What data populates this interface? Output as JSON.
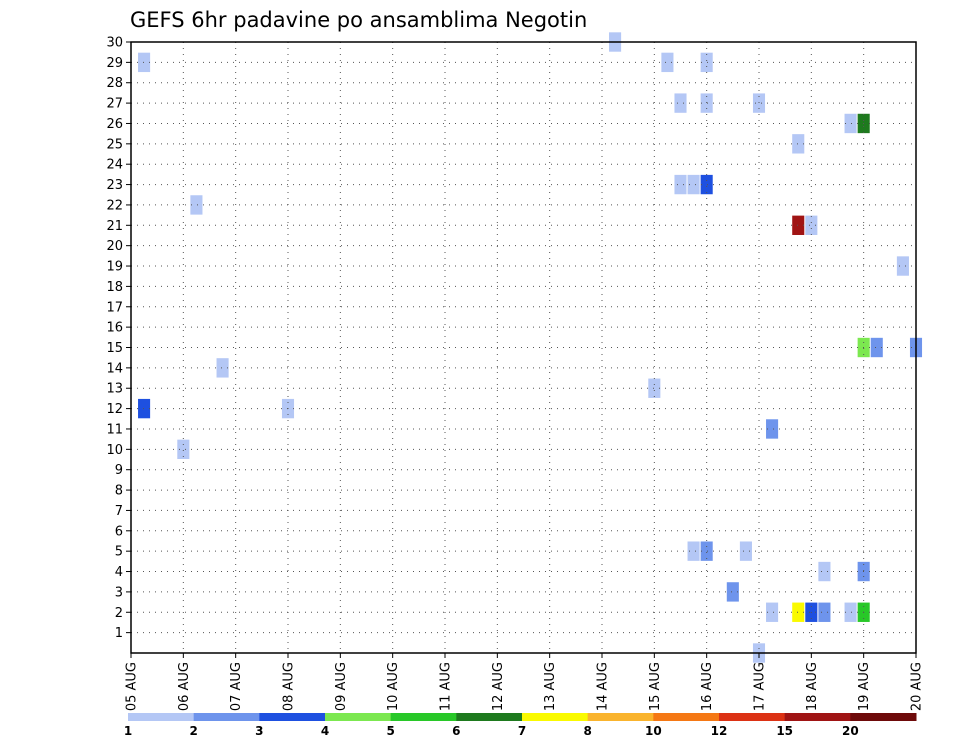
{
  "chart_data": {
    "type": "heatmap",
    "title": "GEFS 6hr padavine po ansamblima Negotin",
    "x_ticks": [
      "05 AUG",
      "06 AUG",
      "07 AUG",
      "08 AUG",
      "09 AUG",
      "10 AUG",
      "11 AUG",
      "12 AUG",
      "13 AUG",
      "14 AUG",
      "15 AUG",
      "16 AUG",
      "17 AUG",
      "18 AUG",
      "19 AUG",
      "20 AUG"
    ],
    "xlim": [
      "05 AUG",
      "20 AUG"
    ],
    "y_ticks": [
      "1",
      "2",
      "3",
      "4",
      "5",
      "6",
      "7",
      "8",
      "9",
      "10",
      "11",
      "12",
      "13",
      "14",
      "15",
      "16",
      "17",
      "18",
      "19",
      "20",
      "21",
      "22",
      "23",
      "24",
      "25",
      "26",
      "27",
      "28",
      "29",
      "30"
    ],
    "ylim": [
      0,
      30
    ],
    "grid": true,
    "colorbar": {
      "labels": [
        "1",
        "2",
        "3",
        "4",
        "5",
        "6",
        "7",
        "8",
        "10",
        "12",
        "15",
        "20"
      ],
      "colors": [
        "#b4c7f5",
        "#6e94ec",
        "#1e50e0",
        "#7ce850",
        "#28c828",
        "#1e7a1e",
        "#fafa00",
        "#fab42d",
        "#f57814",
        "#dc3214",
        "#a01414",
        "#6e0a0a"
      ]
    },
    "cells": [
      {
        "day": 0.25,
        "member": 29,
        "color": "#b4c7f5"
      },
      {
        "day": 0.25,
        "member": 12,
        "color": "#1e50e0"
      },
      {
        "day": 1.0,
        "member": 10,
        "color": "#b4c7f5"
      },
      {
        "day": 1.25,
        "member": 22,
        "color": "#b4c7f5"
      },
      {
        "day": 1.75,
        "member": 14,
        "color": "#b4c7f5"
      },
      {
        "day": 3.0,
        "member": 12,
        "color": "#b4c7f5"
      },
      {
        "day": 9.25,
        "member": 30,
        "color": "#b4c7f5"
      },
      {
        "day": 10.0,
        "member": 13,
        "color": "#b4c7f5"
      },
      {
        "day": 10.25,
        "member": 29,
        "color": "#b4c7f5"
      },
      {
        "day": 10.5,
        "member": 27,
        "color": "#b4c7f5"
      },
      {
        "day": 10.5,
        "member": 23,
        "color": "#b4c7f5"
      },
      {
        "day": 10.75,
        "member": 23,
        "color": "#b4c7f5"
      },
      {
        "day": 10.75,
        "member": 5,
        "color": "#b4c7f5"
      },
      {
        "day": 11.0,
        "member": 29,
        "color": "#b4c7f5"
      },
      {
        "day": 11.0,
        "member": 27,
        "color": "#b4c7f5"
      },
      {
        "day": 11.0,
        "member": 23,
        "color": "#1e50e0"
      },
      {
        "day": 11.0,
        "member": 5,
        "color": "#6e94ec"
      },
      {
        "day": 11.5,
        "member": 3,
        "color": "#6e94ec"
      },
      {
        "day": 11.75,
        "member": 5,
        "color": "#b4c7f5"
      },
      {
        "day": 12.0,
        "member": 27,
        "color": "#b4c7f5"
      },
      {
        "day": 12.0,
        "member": 0,
        "color": "#b4c7f5"
      },
      {
        "day": 12.25,
        "member": 11,
        "color": "#6e94ec"
      },
      {
        "day": 12.25,
        "member": 2,
        "color": "#b4c7f5"
      },
      {
        "day": 12.75,
        "member": 25,
        "color": "#b4c7f5"
      },
      {
        "day": 12.75,
        "member": 21,
        "color": "#a01414"
      },
      {
        "day": 12.75,
        "member": 2,
        "color": "#fafa00"
      },
      {
        "day": 13.0,
        "member": 21,
        "color": "#b4c7f5"
      },
      {
        "day": 13.0,
        "member": 2,
        "color": "#1e50e0"
      },
      {
        "day": 13.25,
        "member": 4,
        "color": "#b4c7f5"
      },
      {
        "day": 13.25,
        "member": 2,
        "color": "#6e94ec"
      },
      {
        "day": 13.75,
        "member": 26,
        "color": "#b4c7f5"
      },
      {
        "day": 13.75,
        "member": 2,
        "color": "#b4c7f5"
      },
      {
        "day": 14.0,
        "member": 26,
        "color": "#1e7a1e"
      },
      {
        "day": 14.0,
        "member": 15,
        "color": "#7ce850"
      },
      {
        "day": 14.0,
        "member": 4,
        "color": "#6e94ec"
      },
      {
        "day": 14.0,
        "member": 2,
        "color": "#28c828"
      },
      {
        "day": 14.25,
        "member": 15,
        "color": "#6e94ec"
      },
      {
        "day": 14.75,
        "member": 19,
        "color": "#b4c7f5"
      },
      {
        "day": 15.0,
        "member": 15,
        "color": "#6e94ec"
      }
    ]
  }
}
